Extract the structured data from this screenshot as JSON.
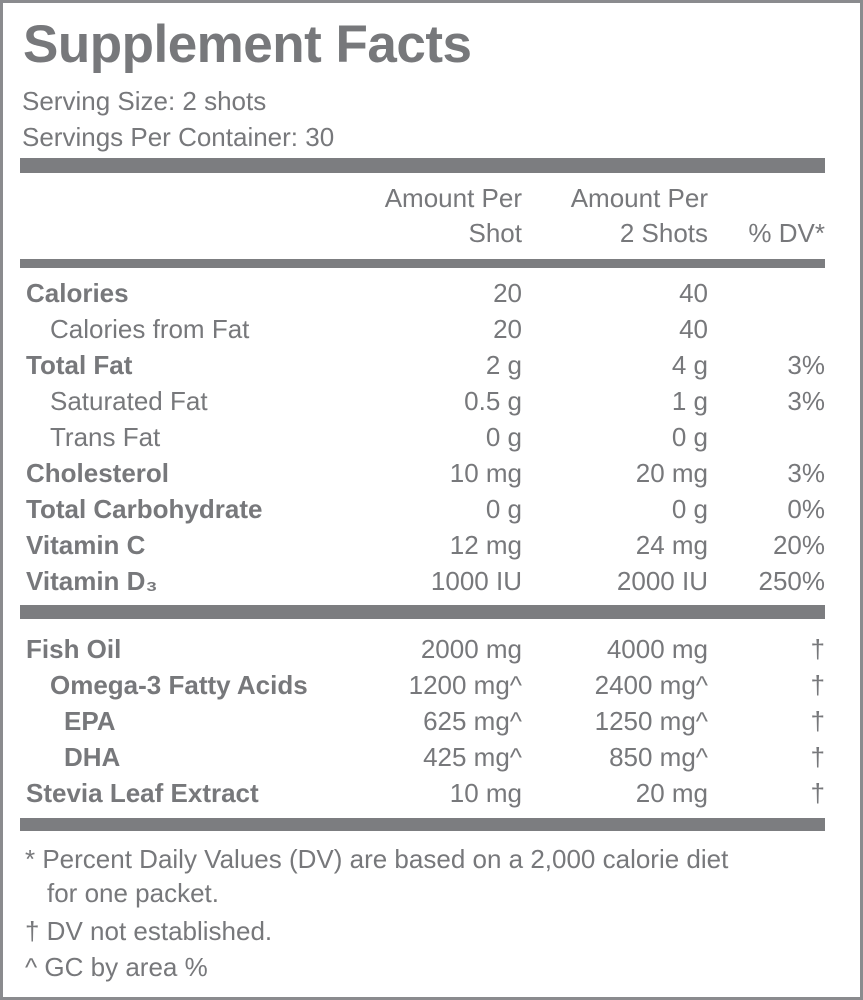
{
  "title": "Supplement Facts",
  "serving_size": "Serving Size: 2 shots",
  "servings_per_container": "Servings Per Container: 30",
  "headers": {
    "col1_line1": "Amount Per",
    "col1_line2": "Shot",
    "col2_line1": "Amount Per",
    "col2_line2": "2 Shots",
    "col3": "% DV*"
  },
  "nutrients": [
    {
      "name": "Calories",
      "per_shot": "20",
      "per_2": "40",
      "dv": ""
    },
    {
      "name": "Calories from Fat",
      "per_shot": "20",
      "per_2": "40",
      "dv": ""
    },
    {
      "name": "Total Fat",
      "per_shot": "2 g",
      "per_2": "4 g",
      "dv": "3%"
    },
    {
      "name": "Saturated Fat",
      "per_shot": "0.5 g",
      "per_2": "1 g",
      "dv": "3%"
    },
    {
      "name": "Trans Fat",
      "per_shot": "0 g",
      "per_2": "0 g",
      "dv": ""
    },
    {
      "name": "Cholesterol",
      "per_shot": "10 mg",
      "per_2": "20 mg",
      "dv": "3%"
    },
    {
      "name": "Total Carbohydrate",
      "per_shot": "0 g",
      "per_2": "0 g",
      "dv": "0%"
    },
    {
      "name": "Vitamin C",
      "per_shot": "12 mg",
      "per_2": "24 mg",
      "dv": "20%"
    },
    {
      "name": "Vitamin D₃",
      "per_shot": "1000 IU",
      "per_2": "2000 IU",
      "dv": "250%"
    }
  ],
  "ingredients": [
    {
      "name": "Fish Oil",
      "per_shot": "2000 mg",
      "per_2": "4000 mg",
      "dv": "†"
    },
    {
      "name": "Omega-3 Fatty Acids",
      "per_shot": "1200 mg^",
      "per_2": "2400 mg^",
      "dv": "†"
    },
    {
      "name": "EPA",
      "per_shot": "625 mg^",
      "per_2": "1250 mg^",
      "dv": "†"
    },
    {
      "name": "DHA",
      "per_shot": "425 mg^",
      "per_2": "850 mg^",
      "dv": "†"
    },
    {
      "name": "Stevia Leaf Extract",
      "per_shot": "10 mg",
      "per_2": "20 mg",
      "dv": "†"
    }
  ],
  "footnotes": {
    "dv_line1": "* Percent Daily Values (DV) are based on a 2,000 calorie diet",
    "dv_line2": "for one packet.",
    "dagger": "† DV not established.",
    "caret": "^ GC by area %"
  },
  "colors": {
    "text": "#77787b",
    "bars": "#7c7d80"
  }
}
